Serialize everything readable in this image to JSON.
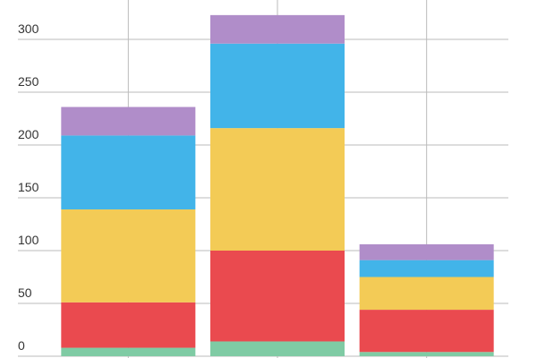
{
  "chart_data": {
    "type": "stacked_bar",
    "categories": [
      null,
      null,
      null
    ],
    "series": [
      {
        "color": "#7fcba4",
        "values": [
          8,
          14,
          4
        ]
      },
      {
        "color": "#ea4a4f",
        "values": [
          43,
          86,
          40
        ]
      },
      {
        "color": "#f3cb56",
        "values": [
          88,
          116,
          31
        ]
      },
      {
        "color": "#42b4e9",
        "values": [
          70,
          80,
          16
        ]
      },
      {
        "color": "#b08dc9",
        "values": [
          27,
          27,
          15
        ]
      }
    ],
    "ylim": [
      -1.7,
      337.3
    ],
    "yticks": [
      0,
      50,
      100,
      150,
      200,
      250,
      300
    ],
    "grid": true
  }
}
